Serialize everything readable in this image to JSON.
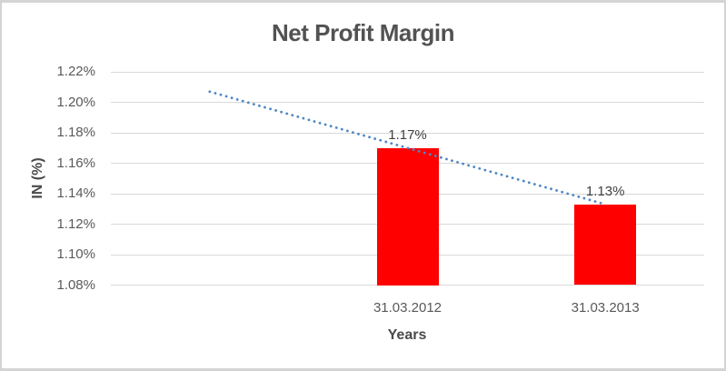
{
  "frame": {
    "background": "#FFFFFF",
    "border_color": "#D4D4D4"
  },
  "chart_data": {
    "type": "bar",
    "title": "Net Profit Margin",
    "xlabel": "Years",
    "ylabel": "IN (%)",
    "categories": [
      "31.03.2012",
      "31.03.2013"
    ],
    "series": [
      {
        "name": "Net Profit Margin",
        "values": [
          1.17,
          1.133
        ]
      }
    ],
    "data_labels": [
      "1.17%",
      "1.13%"
    ],
    "ylim": [
      1.08,
      1.22
    ],
    "ytick_values": [
      1.22,
      1.2,
      1.18,
      1.16,
      1.14,
      1.12,
      1.1,
      1.08
    ],
    "ytick_labels": [
      "1.22%",
      "1.20%",
      "1.18%",
      "1.16%",
      "1.14%",
      "1.12%",
      "1.10%",
      "1.08%"
    ],
    "grid": true,
    "legend": "none",
    "gridline_color": "#D9D9D9",
    "bar_color": "#FF0000",
    "trendline": {
      "type": "linear",
      "style": "dotted",
      "color": "#4E87C5",
      "extends_back_one_slot": true
    },
    "text_colors": {
      "title": "#525252",
      "axis_titles": "#4A4A4A",
      "tick_labels": "#595959",
      "data_labels": "#404040"
    }
  }
}
